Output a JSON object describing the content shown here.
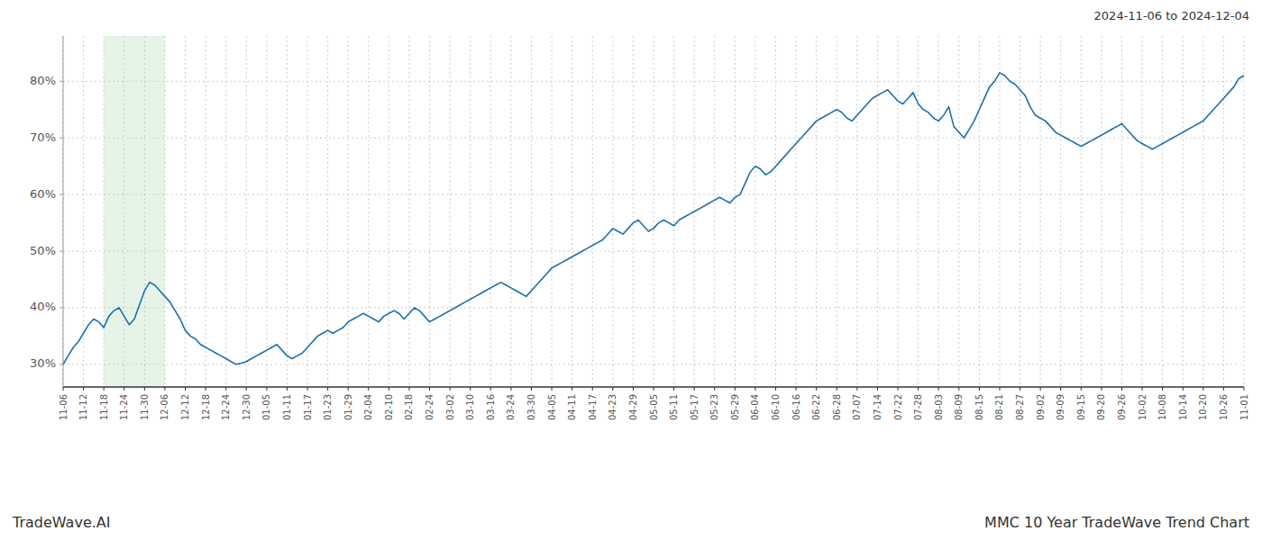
{
  "chart_data": {
    "type": "line",
    "title": "MMC 10 Year TradeWave Trend Chart",
    "subtitle": "2024-11-06 to 2024-12-04",
    "annotations": [
      "TradeWave.AI"
    ],
    "color": "#1a6faf",
    "grid": true,
    "shade": {
      "start": "11-18",
      "end": "12-06",
      "color": "#c8e6c9"
    },
    "ylim": [
      26,
      88
    ],
    "yticks": [
      {
        "value": 30,
        "label": "30%"
      },
      {
        "value": 40,
        "label": "40%"
      },
      {
        "value": 50,
        "label": "50%"
      },
      {
        "value": 60,
        "label": "60%"
      },
      {
        "value": 70,
        "label": "70%"
      },
      {
        "value": 80,
        "label": "80%"
      }
    ],
    "categories": [
      "11-06",
      null,
      null,
      null,
      "11-12",
      null,
      null,
      null,
      "11-18",
      null,
      null,
      null,
      "11-24",
      null,
      null,
      null,
      "11-30",
      null,
      null,
      null,
      "12-06",
      null,
      null,
      null,
      "12-12",
      null,
      null,
      null,
      "12-18",
      null,
      null,
      null,
      "12-24",
      null,
      null,
      null,
      "12-30",
      null,
      null,
      null,
      "01-05",
      null,
      null,
      null,
      "01-11",
      null,
      null,
      null,
      "01-17",
      null,
      null,
      null,
      "01-23",
      null,
      null,
      null,
      "01-29",
      null,
      null,
      null,
      "02-04",
      null,
      null,
      null,
      "02-10",
      null,
      null,
      null,
      "02-18",
      null,
      null,
      null,
      "02-24",
      null,
      null,
      null,
      "03-02",
      null,
      null,
      null,
      "03-10",
      null,
      null,
      null,
      "03-16",
      null,
      null,
      null,
      "03-24",
      null,
      null,
      null,
      "03-30",
      null,
      null,
      null,
      "04-05",
      null,
      null,
      null,
      "04-11",
      null,
      null,
      null,
      "04-17",
      null,
      null,
      null,
      "04-23",
      null,
      null,
      null,
      "04-29",
      null,
      null,
      null,
      "05-05",
      null,
      null,
      null,
      "05-11",
      null,
      null,
      null,
      "05-17",
      null,
      null,
      null,
      "05-23",
      null,
      null,
      null,
      "05-29",
      null,
      null,
      null,
      "06-04",
      null,
      null,
      null,
      "06-10",
      null,
      null,
      null,
      "06-16",
      null,
      null,
      null,
      "06-22",
      null,
      null,
      null,
      "06-28",
      null,
      null,
      null,
      "07-07",
      null,
      null,
      null,
      "07-14",
      null,
      null,
      null,
      "07-22",
      null,
      null,
      null,
      "07-28",
      null,
      null,
      null,
      "08-03",
      null,
      null,
      null,
      "08-09",
      null,
      null,
      null,
      "08-15",
      null,
      null,
      null,
      "08-21",
      null,
      null,
      null,
      "08-27",
      null,
      null,
      null,
      "09-02",
      null,
      null,
      null,
      "09-09",
      null,
      null,
      null,
      "09-15",
      null,
      null,
      null,
      "09-20",
      null,
      null,
      null,
      "09-26",
      null,
      null,
      null,
      "10-02",
      null,
      null,
      null,
      "10-08",
      null,
      null,
      null,
      "10-14",
      null,
      null,
      null,
      "10-20",
      null,
      null,
      null,
      "10-26",
      null,
      null,
      null,
      "11-01"
    ],
    "values": [
      30.0,
      31.5,
      33.0,
      34.0,
      35.5,
      37.0,
      38.0,
      37.5,
      36.5,
      38.5,
      39.5,
      40.0,
      38.5,
      37.0,
      38.0,
      40.5,
      43.0,
      44.5,
      44.0,
      43.0,
      42.0,
      41.0,
      39.5,
      38.0,
      36.0,
      35.0,
      34.5,
      33.5,
      33.0,
      32.5,
      32.0,
      31.5,
      31.0,
      30.5,
      30.0,
      30.2,
      30.5,
      31.0,
      31.5,
      32.0,
      32.5,
      33.0,
      33.5,
      32.5,
      31.5,
      31.0,
      31.5,
      32.0,
      33.0,
      34.0,
      35.0,
      35.5,
      36.0,
      35.5,
      36.0,
      36.5,
      37.5,
      38.0,
      38.5,
      39.0,
      38.5,
      38.0,
      37.5,
      38.5,
      39.0,
      39.5,
      39.0,
      38.0,
      39.0,
      40.0,
      39.5,
      38.5,
      37.5,
      38.0,
      38.5,
      39.0,
      39.5,
      40.0,
      40.5,
      41.0,
      41.5,
      42.0,
      42.5,
      43.0,
      43.5,
      44.0,
      44.5,
      44.0,
      43.5,
      43.0,
      42.5,
      42.0,
      43.0,
      44.0,
      45.0,
      46.0,
      47.0,
      47.5,
      48.0,
      48.5,
      49.0,
      49.5,
      50.0,
      50.5,
      51.0,
      51.5,
      52.0,
      53.0,
      54.0,
      53.5,
      53.0,
      54.0,
      55.0,
      55.5,
      54.5,
      53.5,
      54.0,
      55.0,
      55.5,
      55.0,
      54.5,
      55.5,
      56.0,
      56.5,
      57.0,
      57.5,
      58.0,
      58.5,
      59.0,
      59.5,
      59.0,
      58.5,
      59.5,
      60.0,
      62.0,
      64.0,
      65.0,
      64.5,
      63.5,
      64.0,
      65.0,
      66.0,
      67.0,
      68.0,
      69.0,
      70.0,
      71.0,
      72.0,
      73.0,
      73.5,
      74.0,
      74.5,
      75.0,
      74.5,
      73.5,
      73.0,
      74.0,
      75.0,
      76.0,
      77.0,
      77.5,
      78.0,
      78.5,
      77.5,
      76.5,
      76.0,
      77.0,
      78.0,
      76.0,
      75.0,
      74.5,
      73.5,
      73.0,
      74.0,
      75.5,
      72.0,
      71.0,
      70.0,
      71.5,
      73.0,
      75.0,
      77.0,
      79.0,
      80.0,
      81.5,
      81.0,
      80.0,
      79.5,
      78.5,
      77.5,
      75.5,
      74.0,
      73.5,
      73.0,
      72.0,
      71.0,
      70.5,
      70.0,
      69.5,
      69.0,
      68.5,
      69.0,
      69.5,
      70.0,
      70.5,
      71.0,
      71.5,
      72.0,
      72.5,
      71.5,
      70.5,
      69.5,
      69.0,
      68.5,
      68.0,
      68.5,
      69.0,
      69.5,
      70.0,
      70.5,
      71.0,
      71.5,
      72.0,
      72.5,
      73.0,
      74.0,
      75.0,
      76.0,
      77.0,
      78.0,
      79.0,
      80.5,
      81.0
    ]
  }
}
